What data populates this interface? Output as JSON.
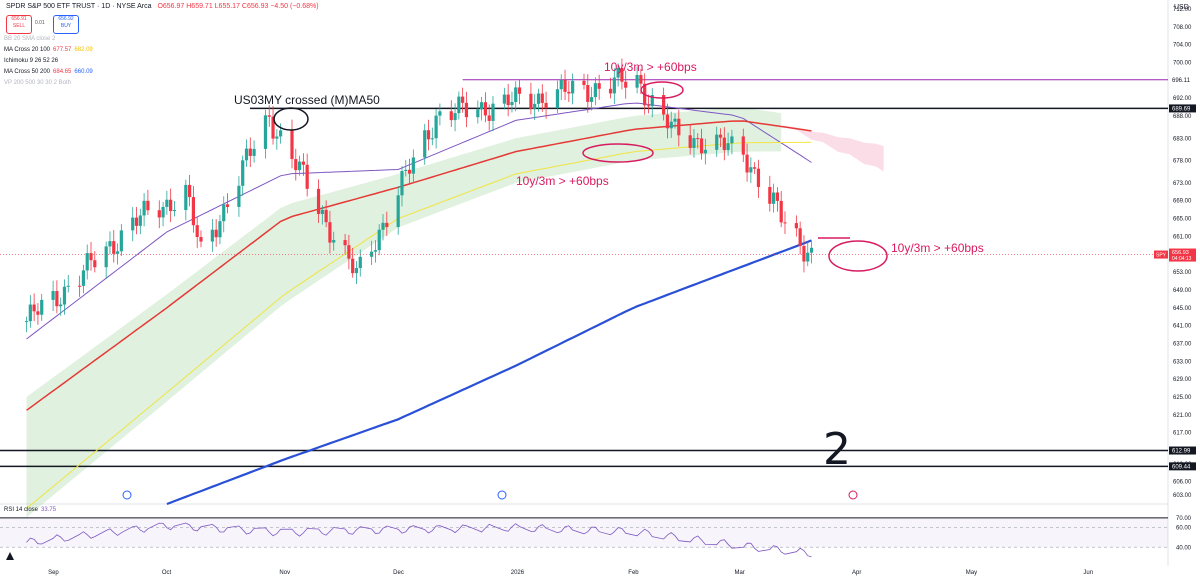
{
  "header": {
    "symbol_line": "SPDR S&P 500 ETF TRUST · 1D · NYSE Arca",
    "ohlc": "O656.97 H659.71 L655.17 C656.93 −4.50 (−0.68%)",
    "sell_price": "656.91",
    "sell_label": "SELL",
    "spread": "0.01",
    "buy_price": "656.92",
    "buy_label": "BUY",
    "currency": "USD"
  },
  "indicators": [
    {
      "name": "BB 20 SMA close 2",
      "v1": "",
      "v2": "",
      "faded": true
    },
    {
      "name": "MA Cross 20 100",
      "v1": "677.57",
      "v2": "682.09",
      "faded": false
    },
    {
      "name": "Ichimoku 9 26 52 26",
      "v1": "",
      "v2": "",
      "faded": false
    },
    {
      "name": "MA Cross 50 200",
      "v1": "684.65",
      "v2": "660.09",
      "faded": false
    },
    {
      "name": "VP 200 500 30 30 2 Both",
      "v1": "",
      "v2": "",
      "faded": true
    }
  ],
  "rsi": {
    "label": "RSI 14 close",
    "value": "33.75",
    "levels": [
      70,
      60,
      40
    ]
  },
  "annotations": {
    "top": "10y/3m > +60bps",
    "mid": "10y/3m > +60bps",
    "right": "10y/3m > +60bps",
    "us03my": "US03MY crossed (M)MA50",
    "scribble": "2"
  },
  "price_tags": {
    "resistance_696": "696.11",
    "resistance_689": "689.69",
    "spy_tag": "SPY",
    "spy_price": "656.93",
    "spy_timer": "04:04:13",
    "support_612": "612.99",
    "support_609": "609.44"
  },
  "colors": {
    "up": "#26a69a",
    "down": "#f23645",
    "ma20": "#7e57c2",
    "ma50": "#e53935",
    "ma100": "#f0e442",
    "ma200": "#2950d6",
    "cloud": "#a5d6a7",
    "annotation": "#d81b60"
  },
  "chart_data": {
    "type": "line",
    "title": "SPDR S&P 500 ETF TRUST",
    "x_axis_labels": [
      "Sep",
      "Oct",
      "Nov",
      "Dec",
      "2026",
      "Feb",
      "Mar",
      "Apr",
      "May",
      "Jun"
    ],
    "y_axis_labels": [
      712,
      708,
      704,
      700,
      696,
      692,
      688,
      683,
      678,
      673,
      669,
      665,
      661,
      657,
      653,
      649,
      645,
      641,
      637,
      633,
      629,
      625,
      621,
      617,
      613,
      610,
      606,
      603
    ],
    "ylim": [
      601,
      714
    ],
    "horizontal_levels": [
      696.11,
      689.69,
      612.99,
      609.44
    ],
    "last_price": 656.93,
    "grid": true,
    "series": [
      {
        "name": "SPY",
        "role": "price",
        "x": [
          "2025-08-25",
          "2025-09-08",
          "2025-09-22",
          "2025-10-06",
          "2025-10-10",
          "2025-10-28",
          "2025-11-20",
          "2025-12-11",
          "2026-01-12",
          "2026-02-02",
          "2026-02-12",
          "2026-03-02",
          "2026-03-12",
          "2026-03-20"
        ],
        "values": [
          642.0,
          652.0,
          664.0,
          671.0,
          657.0,
          688.0,
          652.0,
          688.0,
          693.0,
          696.0,
          684.0,
          680.0,
          665.0,
          656.93
        ]
      },
      {
        "name": "MA 20",
        "x": [
          "2025-08-25",
          "2025-10-01",
          "2025-11-01",
          "2025-12-01",
          "2026-01-01",
          "2026-02-01",
          "2026-03-01",
          "2026-03-20"
        ],
        "values": [
          638.0,
          662.0,
          675.0,
          676.0,
          687.0,
          691.0,
          688.0,
          677.57
        ]
      },
      {
        "name": "MA 50",
        "x": [
          "2025-08-25",
          "2025-10-01",
          "2025-11-01",
          "2025-12-01",
          "2026-01-01",
          "2026-02-01",
          "2026-03-01",
          "2026-03-20"
        ],
        "values": [
          622.0,
          645.0,
          665.0,
          672.0,
          680.0,
          685.0,
          687.0,
          684.65
        ]
      },
      {
        "name": "MA 100",
        "x": [
          "2025-08-25",
          "2025-10-01",
          "2025-11-01",
          "2025-12-01",
          "2026-01-01",
          "2026-02-01",
          "2026-03-01",
          "2026-03-20"
        ],
        "values": [
          600.0,
          626.0,
          648.0,
          665.0,
          675.0,
          680.0,
          682.0,
          682.09
        ]
      },
      {
        "name": "MA 200",
        "x": [
          "2025-10-01",
          "2025-11-01",
          "2025-12-01",
          "2026-01-01",
          "2026-02-01",
          "2026-03-01",
          "2026-03-20"
        ],
        "values": [
          601.0,
          611.0,
          620.0,
          632.0,
          645.0,
          654.0,
          660.09
        ]
      },
      {
        "name": "RSI 14",
        "x": [
          "2025-08-25",
          "2025-10-01",
          "2025-11-01",
          "2025-12-01",
          "2026-01-01",
          "2026-02-01",
          "2026-03-01",
          "2026-03-20"
        ],
        "values": [
          45.0,
          62.0,
          55.0,
          58.0,
          60.0,
          56.0,
          42.0,
          33.75
        ]
      }
    ]
  }
}
